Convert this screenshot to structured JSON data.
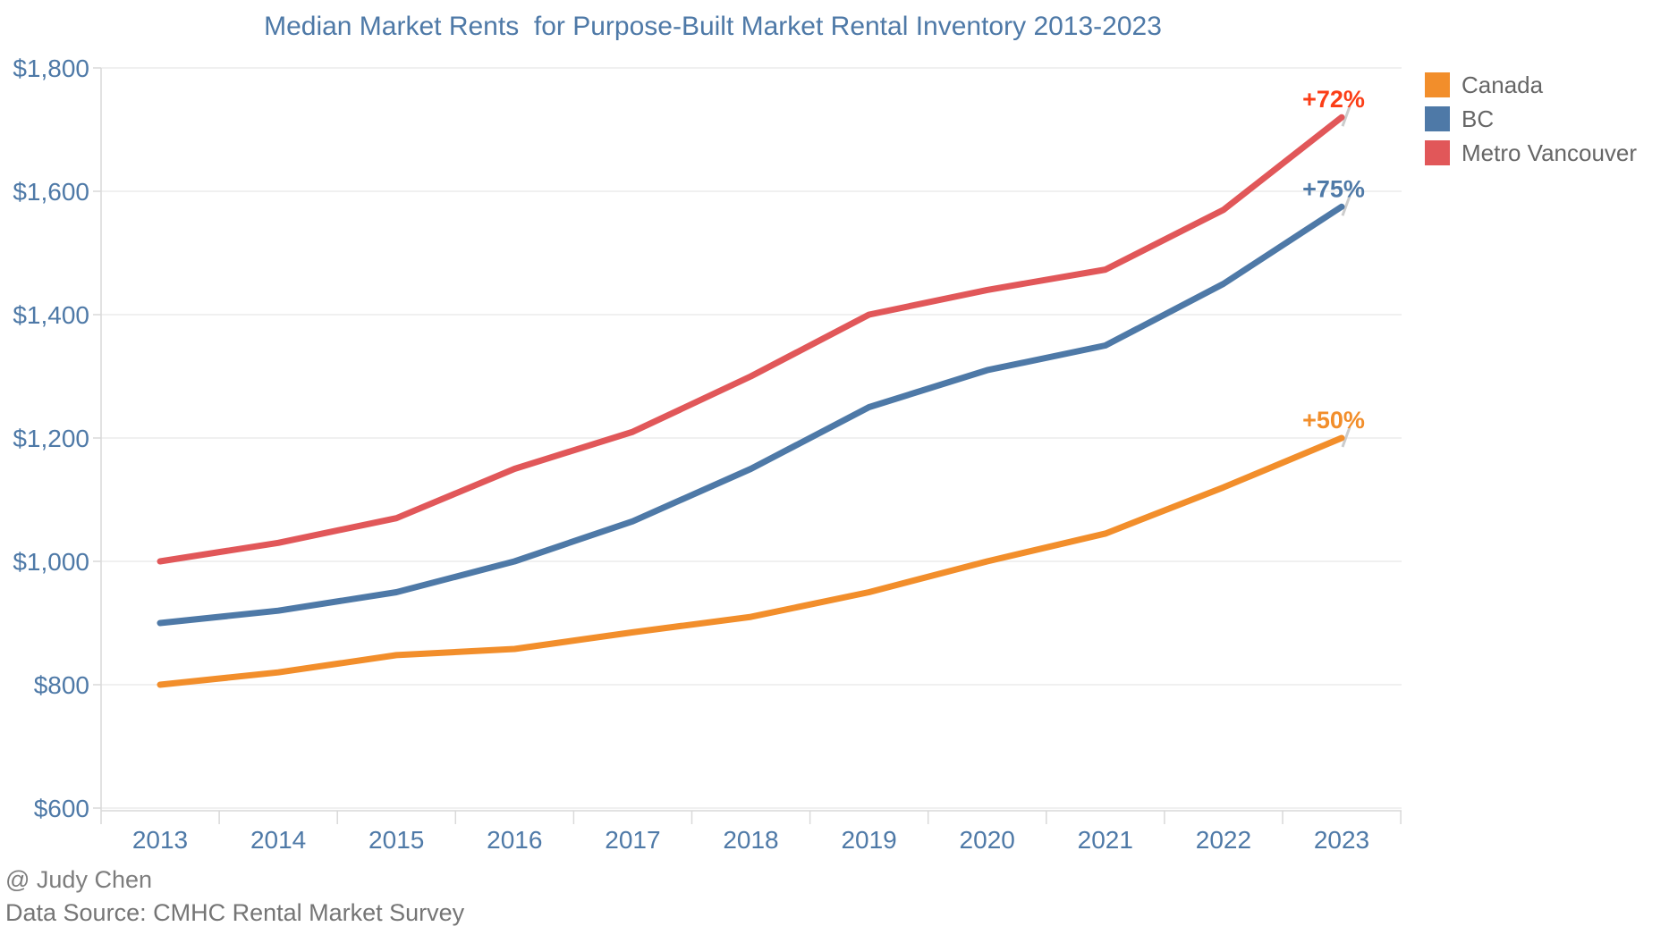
{
  "title": "Median Market Rents  for Purpose-Built Market Rental Inventory 2013-2023",
  "legend": [
    {
      "label": "Canada",
      "color": "#f28e2b"
    },
    {
      "label": "BC",
      "color": "#4e79a7"
    },
    {
      "label": "Metro Vancouver",
      "color": "#e15759"
    }
  ],
  "chart_data": {
    "type": "line",
    "x": [
      2013,
      2014,
      2015,
      2016,
      2017,
      2018,
      2019,
      2020,
      2021,
      2022,
      2023
    ],
    "series": [
      {
        "name": "Canada",
        "color": "#f28e2b",
        "values": [
          800,
          820,
          848,
          858,
          885,
          910,
          950,
          1000,
          1045,
          1120,
          1200
        ],
        "annotation": "+50%",
        "annotation_color": "#f28e2b"
      },
      {
        "name": "BC",
        "color": "#4e79a7",
        "values": [
          900,
          920,
          950,
          1000,
          1065,
          1150,
          1250,
          1310,
          1350,
          1450,
          1575
        ],
        "annotation": "+75%",
        "annotation_color": "#4e79a7"
      },
      {
        "name": "Metro Vancouver",
        "color": "#e15759",
        "values": [
          1000,
          1030,
          1070,
          1150,
          1210,
          1300,
          1400,
          1440,
          1473,
          1570,
          1720
        ],
        "annotation": "+72%",
        "annotation_color": "#fb3e17"
      }
    ],
    "yticks": {
      "values": [
        600,
        800,
        1000,
        1200,
        1400,
        1600,
        1800
      ],
      "labels": [
        "$600",
        "$800",
        "$1,000",
        "$1,200",
        "$1,400",
        "$1,600",
        "$1,800"
      ]
    },
    "ylim": [
      600,
      1800
    ],
    "grid": true,
    "legend_position": "right",
    "colors": {
      "axis_text": "#4e79a7",
      "gridline": "#ececec",
      "axis_line": "#d9d9d9",
      "leader_stub": "#cccccc"
    }
  },
  "footer": {
    "line1": "@ Judy Chen",
    "line2": "Data Source: CMHC Rental Market Survey"
  }
}
